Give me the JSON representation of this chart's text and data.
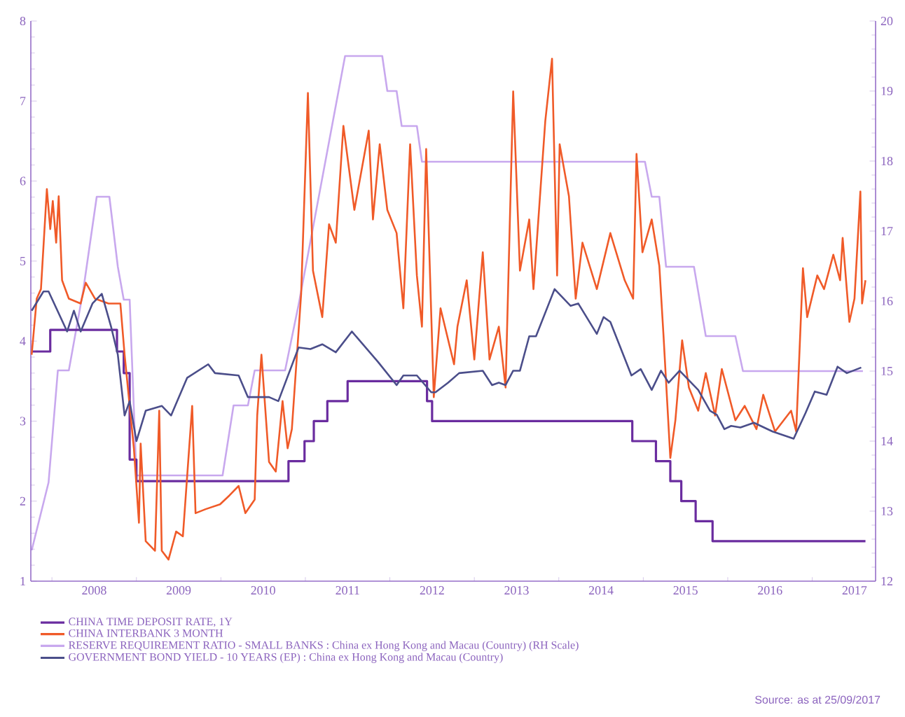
{
  "chart_data": {
    "type": "line",
    "xlim": [
      2007.75,
      2017.75
    ],
    "ylim": [
      1,
      8
    ],
    "yticks": [
      1,
      2,
      3,
      4,
      5,
      6,
      7,
      8
    ],
    "y2lim": [
      12,
      20
    ],
    "y2ticks": [
      12,
      13,
      14,
      15,
      16,
      17,
      18,
      19,
      20
    ],
    "xticks": [
      {
        "value": 2008,
        "label": null
      },
      {
        "value": 2008.5,
        "label": "2008"
      },
      {
        "value": 2009,
        "label": null
      },
      {
        "value": 2009.5,
        "label": "2009"
      },
      {
        "value": 2010,
        "label": null
      },
      {
        "value": 2010.5,
        "label": "2010"
      },
      {
        "value": 2011,
        "label": null
      },
      {
        "value": 2011.5,
        "label": "2011"
      },
      {
        "value": 2012,
        "label": null
      },
      {
        "value": 2012.5,
        "label": "2012"
      },
      {
        "value": 2013,
        "label": null
      },
      {
        "value": 2013.5,
        "label": "2013"
      },
      {
        "value": 2014,
        "label": null
      },
      {
        "value": 2014.5,
        "label": "2014"
      },
      {
        "value": 2015,
        "label": null
      },
      {
        "value": 2015.5,
        "label": "2015"
      },
      {
        "value": 2016,
        "label": null
      },
      {
        "value": 2016.5,
        "label": "2016"
      },
      {
        "value": 2017,
        "label": null
      },
      {
        "value": 2017.5,
        "label": "2017"
      }
    ],
    "grid": false,
    "legend": "bottom",
    "marker": "none",
    "line_style": "solid",
    "series": [
      {
        "name": "CHINA TIME DEPOSIT RATE, 1Y",
        "color": "#6a2c9f",
        "type": "step",
        "x": [
          2007.76,
          2007.98,
          2008.77,
          2008.85,
          2008.92,
          2009.0,
          2010.8,
          2010.99,
          2011.1,
          2011.26,
          2011.5,
          2012.44,
          2012.5,
          2014.87,
          2015.15,
          2015.32,
          2015.45,
          2015.62,
          2015.82,
          2017.63
        ],
        "values": [
          3.87,
          4.14,
          3.87,
          3.6,
          2.52,
          2.25,
          2.5,
          2.75,
          3.0,
          3.25,
          3.5,
          3.25,
          3.0,
          2.75,
          2.5,
          2.25,
          2.0,
          1.75,
          1.5,
          1.5
        ]
      },
      {
        "name": "CHINA INTERBANK 3 MONTH",
        "color": "#f05a28",
        "x": [
          2007.76,
          2007.82,
          2007.87,
          2007.94,
          2007.98,
          2008.01,
          2008.05,
          2008.08,
          2008.12,
          2008.2,
          2008.34,
          2008.4,
          2008.51,
          2008.67,
          2008.81,
          2008.86,
          2008.97,
          2009.03,
          2009.05,
          2009.11,
          2009.22,
          2009.27,
          2009.3,
          2009.38,
          2009.47,
          2009.55,
          2009.66,
          2009.7,
          2009.82,
          2009.99,
          2010.1,
          2010.21,
          2010.29,
          2010.4,
          2010.43,
          2010.48,
          2010.57,
          2010.65,
          2010.73,
          2010.79,
          2010.84,
          2010.95,
          2011.03,
          2011.09,
          2011.2,
          2011.28,
          2011.36,
          2011.45,
          2011.58,
          2011.75,
          2011.8,
          2011.88,
          2011.97,
          2012.08,
          2012.16,
          2012.24,
          2012.32,
          2012.38,
          2012.43,
          2012.52,
          2012.6,
          2012.76,
          2012.8,
          2012.91,
          2013.0,
          2013.1,
          2013.18,
          2013.29,
          2013.37,
          2013.46,
          2013.54,
          2013.65,
          2013.7,
          2013.84,
          2013.92,
          2013.98,
          2014.01,
          2014.12,
          2014.2,
          2014.28,
          2014.45,
          2014.61,
          2014.78,
          2014.88,
          2014.92,
          2014.99,
          2015.1,
          2015.19,
          2015.24,
          2015.32,
          2015.38,
          2015.46,
          2015.54,
          2015.65,
          2015.74,
          2015.85,
          2015.93,
          2016.09,
          2016.2,
          2016.34,
          2016.42,
          2016.56,
          2016.75,
          2016.81,
          2016.89,
          2016.94,
          2017.06,
          2017.14,
          2017.25,
          2017.33,
          2017.36,
          2017.44,
          2017.5,
          2017.57,
          2017.59,
          2017.63
        ],
        "values": [
          3.83,
          4.53,
          4.65,
          5.9,
          5.4,
          5.75,
          5.23,
          5.81,
          4.76,
          4.53,
          4.47,
          4.73,
          4.53,
          4.47,
          4.47,
          3.83,
          2.66,
          1.73,
          2.72,
          1.5,
          1.38,
          3.13,
          1.38,
          1.27,
          1.62,
          1.56,
          3.19,
          1.85,
          1.9,
          1.96,
          2.07,
          2.19,
          1.85,
          2.02,
          3.07,
          3.83,
          2.49,
          2.37,
          3.25,
          2.66,
          2.9,
          4.59,
          7.1,
          4.88,
          4.3,
          5.46,
          5.23,
          6.69,
          5.64,
          6.63,
          5.52,
          6.46,
          5.64,
          5.35,
          4.41,
          6.46,
          4.82,
          4.18,
          6.4,
          3.3,
          4.41,
          3.71,
          4.18,
          4.76,
          3.77,
          5.11,
          3.77,
          4.18,
          3.42,
          7.12,
          4.88,
          5.52,
          4.65,
          6.75,
          7.53,
          4.82,
          6.46,
          5.81,
          4.53,
          5.23,
          4.65,
          5.35,
          4.76,
          4.53,
          6.34,
          5.11,
          5.52,
          4.94,
          4.06,
          2.54,
          3.01,
          4.01,
          3.42,
          3.13,
          3.6,
          3.07,
          3.65,
          3.01,
          3.19,
          2.9,
          3.33,
          2.87,
          3.13,
          2.87,
          4.91,
          4.3,
          4.82,
          4.65,
          5.08,
          4.76,
          5.29,
          4.24,
          4.53,
          5.87,
          4.47,
          4.76
        ]
      },
      {
        "name": "RESERVE REQUIREMENT RATIO - SMALL BANKS : China ex Hong Kong and Macau (Country) (RH Scale)",
        "color": "#c8a8ee",
        "axis": "y2",
        "x": [
          2007.76,
          2007.96,
          2008.07,
          2008.2,
          2008.37,
          2008.53,
          2008.68,
          2008.78,
          2008.85,
          2008.92,
          2009.0,
          2010.02,
          2010.15,
          2010.32,
          2010.4,
          2010.76,
          2010.92,
          2011.47,
          2011.91,
          2011.97,
          2012.08,
          2012.14,
          2012.32,
          2012.38,
          2015.02,
          2015.1,
          2015.19,
          2015.27,
          2015.6,
          2015.74,
          2016.09,
          2016.18,
          2017.6
        ],
        "values": [
          12.44,
          13.41,
          15.01,
          15.01,
          16.15,
          17.49,
          17.49,
          16.49,
          16.02,
          16.02,
          13.51,
          13.51,
          14.51,
          14.51,
          15.01,
          15.01,
          15.95,
          19.5,
          19.5,
          19.0,
          19.0,
          18.5,
          18.5,
          17.99,
          17.99,
          17.49,
          17.49,
          16.49,
          16.49,
          15.5,
          15.5,
          15.0,
          15.0
        ]
      },
      {
        "name": "GOVERNMENT BOND YIELD - 10 YEARS (EP) : China ex Hong Kong and Macau (Country)",
        "color": "#4b4e8a",
        "x": [
          2007.76,
          2007.9,
          2007.96,
          2008.18,
          2008.26,
          2008.34,
          2008.48,
          2008.59,
          2008.7,
          2008.78,
          2008.86,
          2008.92,
          2009.0,
          2009.11,
          2009.3,
          2009.41,
          2009.6,
          2009.85,
          2009.93,
          2010.21,
          2010.32,
          2010.57,
          2010.68,
          2010.92,
          2011.06,
          2011.2,
          2011.36,
          2011.55,
          2011.86,
          2012.08,
          2012.16,
          2012.32,
          2012.49,
          2012.54,
          2012.69,
          2012.82,
          2013.1,
          2013.21,
          2013.29,
          2013.37,
          2013.46,
          2013.54,
          2013.65,
          2013.73,
          2013.95,
          2014.14,
          2014.23,
          2014.45,
          2014.53,
          2014.61,
          2014.86,
          2014.97,
          2015.1,
          2015.21,
          2015.3,
          2015.43,
          2015.65,
          2015.79,
          2015.87,
          2015.96,
          2016.04,
          2016.15,
          2016.31,
          2016.53,
          2016.78,
          2016.92,
          2017.03,
          2017.17,
          2017.3,
          2017.41,
          2017.58
        ],
        "values": [
          4.38,
          4.62,
          4.62,
          4.12,
          4.38,
          4.12,
          4.47,
          4.59,
          4.18,
          3.83,
          3.07,
          3.25,
          2.75,
          3.13,
          3.19,
          3.07,
          3.54,
          3.71,
          3.6,
          3.57,
          3.3,
          3.3,
          3.25,
          3.92,
          3.9,
          3.96,
          3.86,
          4.12,
          3.74,
          3.45,
          3.57,
          3.57,
          3.36,
          3.36,
          3.48,
          3.6,
          3.63,
          3.45,
          3.48,
          3.45,
          3.63,
          3.63,
          4.06,
          4.06,
          4.65,
          4.44,
          4.47,
          4.09,
          4.3,
          4.24,
          3.57,
          3.65,
          3.39,
          3.63,
          3.48,
          3.63,
          3.39,
          3.13,
          3.08,
          2.9,
          2.94,
          2.92,
          2.98,
          2.87,
          2.78,
          3.1,
          3.37,
          3.33,
          3.68,
          3.6,
          3.67
        ]
      }
    ],
    "annotations": [
      "Source: as at 25/09/2017"
    ]
  }
}
